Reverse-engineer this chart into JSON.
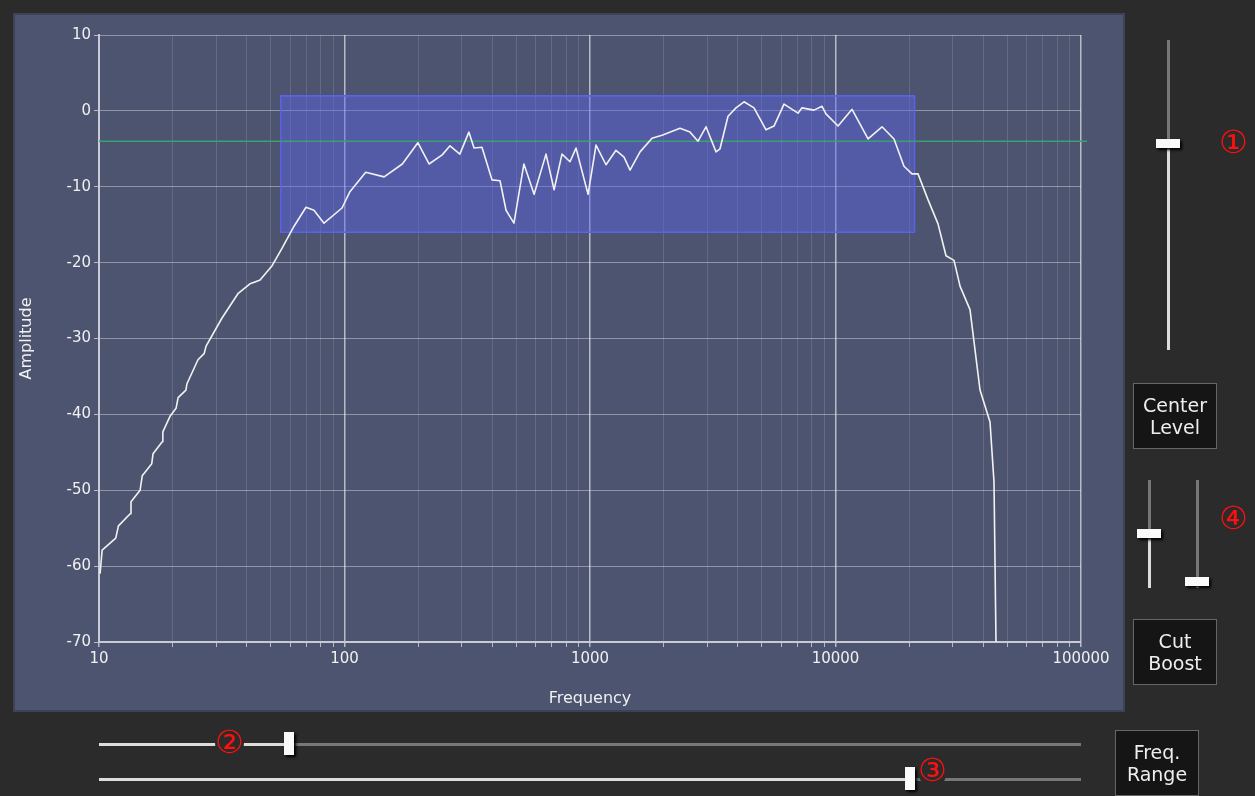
{
  "chart_data": {
    "type": "line",
    "xlabel": "Frequency",
    "ylabel": "Amplitude",
    "log": "x",
    "xlim": [
      10,
      100000
    ],
    "xticks": [
      10,
      {
        "value": 20,
        "label": null
      },
      {
        "value": 30,
        "label": null
      },
      {
        "value": 40,
        "label": null
      },
      {
        "value": 50,
        "label": null
      },
      {
        "value": 60,
        "label": null
      },
      {
        "value": 70,
        "label": null
      },
      {
        "value": 80,
        "label": null
      },
      {
        "value": 90,
        "label": null
      },
      100,
      {
        "value": 200,
        "label": null
      },
      {
        "value": 300,
        "label": null
      },
      {
        "value": 400,
        "label": null
      },
      {
        "value": 500,
        "label": null
      },
      {
        "value": 600,
        "label": null
      },
      {
        "value": 700,
        "label": null
      },
      {
        "value": 800,
        "label": null
      },
      {
        "value": 900,
        "label": null
      },
      1000,
      {
        "value": 2000,
        "label": null
      },
      {
        "value": 3000,
        "label": null
      },
      {
        "value": 4000,
        "label": null
      },
      {
        "value": 5000,
        "label": null
      },
      {
        "value": 6000,
        "label": null
      },
      {
        "value": 7000,
        "label": null
      },
      {
        "value": 8000,
        "label": null
      },
      {
        "value": 9000,
        "label": null
      },
      10000,
      {
        "value": 20000,
        "label": null
      },
      {
        "value": 30000,
        "label": null
      },
      {
        "value": 40000,
        "label": null
      },
      {
        "value": 50000,
        "label": null
      },
      {
        "value": 60000,
        "label": null
      },
      {
        "value": 70000,
        "label": null
      },
      {
        "value": 80000,
        "label": null
      },
      {
        "value": 90000,
        "label": null
      },
      100000
    ],
    "ylim": [
      -70,
      10
    ],
    "yticks": [
      -70,
      -60,
      -50,
      -40,
      -30,
      -20,
      -10,
      0,
      10
    ],
    "grid": true,
    "legend": false,
    "marker": "none",
    "line_style": "solid",
    "series": [
      {
        "type": "line",
        "color": "#5a62e8",
        "x": [
          55,
          21000
        ],
        "values": [
          2,
          2
        ],
        "lower": [
          -16,
          -16
        ],
        "upper": [
          2,
          2
        ]
      },
      {
        "color": "#f2f2f2",
        "x": [
          10.1,
          10.3,
          11.7,
          12.0,
          13.4,
          13.5,
          14.7,
          15.0,
          16.4,
          16.6,
          18.1,
          18.2,
          19.5,
          20.6,
          21.0,
          22.6,
          22.8,
          25.3,
          26.8,
          27.3,
          31.7,
          36.8,
          41.2,
          45.3,
          50.7,
          55.7,
          62.3,
          69.7,
          75.1,
          82.5,
          97.7,
          105,
          122,
          145,
          172,
          199,
          221,
          250,
          269,
          295,
          321,
          337,
          363,
          399,
          430,
          455,
          490,
          538,
          592,
          662,
          714,
          769,
          829,
          877,
          982,
          1058,
          1162,
          1276,
          1376,
          1456,
          1599,
          1789,
          1965,
          2326,
          2555,
          2754,
          2969,
          3261,
          3385,
          3649,
          3932,
          4240,
          4656,
          5211,
          5617,
          6170,
          7036,
          7302,
          8173,
          8810,
          9147,
          10240,
          11680,
          13570,
          15470,
          17310,
          19010,
          20490,
          21680,
          23810,
          26160,
          28190,
          30390,
          32150,
          35310,
          38790,
          42600,
          44220,
          45060
        ],
        "values": [
          -61.0,
          -57.9,
          -56.3,
          -54.7,
          -53.1,
          -51.5,
          -50.0,
          -48.1,
          -46.5,
          -45.2,
          -43.6,
          -42.3,
          -40.2,
          -39.2,
          -37.8,
          -36.8,
          -36.0,
          -32.8,
          -32.0,
          -31.0,
          -27.3,
          -24.1,
          -22.8,
          -22.3,
          -20.4,
          -18.1,
          -15.2,
          -12.7,
          -13.1,
          -14.8,
          -12.8,
          -10.7,
          -8.1,
          -8.7,
          -7.0,
          -4.2,
          -7.0,
          -5.8,
          -4.6,
          -5.7,
          -2.8,
          -4.9,
          -4.8,
          -9.1,
          -9.2,
          -13.1,
          -14.8,
          -7.0,
          -11.0,
          -5.7,
          -10.4,
          -5.7,
          -6.7,
          -4.9,
          -11.0,
          -4.5,
          -7.1,
          -5.2,
          -6.1,
          -7.8,
          -5.4,
          -3.6,
          -3.2,
          -2.3,
          -2.8,
          -4.0,
          -2.1,
          -5.4,
          -5.0,
          -0.7,
          0.4,
          1.2,
          0.4,
          -2.5,
          -2.0,
          0.9,
          -0.3,
          0.4,
          0.1,
          0.6,
          -0.4,
          -2.0,
          0.2,
          -3.7,
          -2.1,
          -3.7,
          -7.3,
          -8.3,
          -8.3,
          -11.7,
          -14.9,
          -19.1,
          -19.7,
          -23.1,
          -26.2,
          -36.8,
          -41.0,
          -48.9,
          -70
        ]
      }
    ],
    "ref_lines": [
      {
        "axis": "y",
        "value": -4,
        "color": "#3aa070"
      }
    ],
    "annotations": [
      "①",
      "④",
      "②",
      "③",
      "Center Level",
      "Cut Boost",
      "Freq. Range"
    ]
  }
}
